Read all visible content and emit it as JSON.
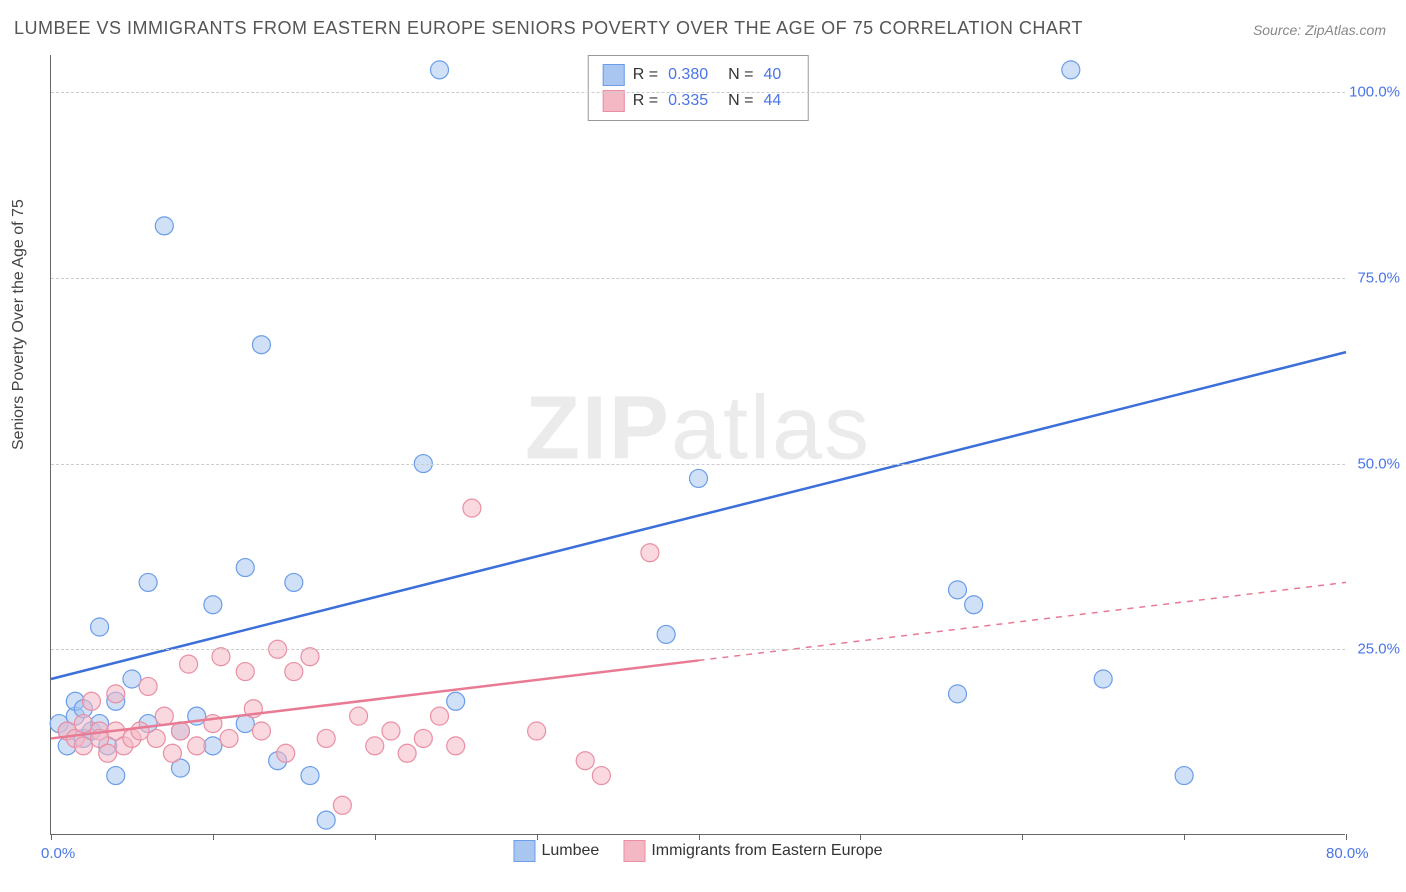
{
  "title": "LUMBEE VS IMMIGRANTS FROM EASTERN EUROPE SENIORS POVERTY OVER THE AGE OF 75 CORRELATION CHART",
  "source": "Source: ZipAtlas.com",
  "y_axis_label": "Seniors Poverty Over the Age of 75",
  "watermark_bold": "ZIP",
  "watermark_light": "atlas",
  "chart": {
    "type": "scatter",
    "plot_background": "#ffffff",
    "grid_color": "#cccccc",
    "axis_color": "#666666",
    "tick_label_color": "#4a74e8",
    "xlim": [
      0,
      80
    ],
    "ylim": [
      0,
      105
    ],
    "y_ticks": [
      25,
      50,
      75,
      100
    ],
    "y_tick_labels": [
      "25.0%",
      "50.0%",
      "75.0%",
      "100.0%"
    ],
    "x_ticks": [
      0,
      10,
      20,
      30,
      40,
      50,
      60,
      70,
      80
    ],
    "x_axis_labels": [
      {
        "value": 0,
        "text": "0.0%"
      },
      {
        "value": 80,
        "text": "80.0%"
      }
    ],
    "marker_radius": 9,
    "marker_opacity": 0.55,
    "line_width": 2.5,
    "series": [
      {
        "name": "Lumbee",
        "color_fill": "#a8c6f0",
        "color_stroke": "#6b9de8",
        "line_color": "#3c6fd9",
        "R": "0.380",
        "N": "40",
        "trend": {
          "x1": 0,
          "y1": 21,
          "x2": 80,
          "y2": 65,
          "solid_until_x": 80
        },
        "points": [
          [
            0.5,
            15
          ],
          [
            1,
            12
          ],
          [
            1,
            14
          ],
          [
            1.5,
            16
          ],
          [
            1.5,
            18
          ],
          [
            2,
            13
          ],
          [
            2,
            17
          ],
          [
            2.5,
            14
          ],
          [
            3,
            28
          ],
          [
            3,
            15
          ],
          [
            3.5,
            12
          ],
          [
            4,
            18
          ],
          [
            4,
            8
          ],
          [
            5,
            21
          ],
          [
            6,
            34
          ],
          [
            6,
            15
          ],
          [
            7,
            82
          ],
          [
            8,
            14
          ],
          [
            8,
            9
          ],
          [
            9,
            16
          ],
          [
            10,
            31
          ],
          [
            10,
            12
          ],
          [
            12,
            36
          ],
          [
            12,
            15
          ],
          [
            13,
            66
          ],
          [
            14,
            10
          ],
          [
            15,
            34
          ],
          [
            16,
            8
          ],
          [
            17,
            2
          ],
          [
            23,
            50
          ],
          [
            24,
            103
          ],
          [
            25,
            18
          ],
          [
            38,
            27
          ],
          [
            40,
            48
          ],
          [
            56,
            19
          ],
          [
            56,
            33
          ],
          [
            57,
            31
          ],
          [
            63,
            103
          ],
          [
            65,
            21
          ],
          [
            70,
            8
          ]
        ]
      },
      {
        "name": "Immigrants from Eastern Europe",
        "color_fill": "#f4b8c4",
        "color_stroke": "#ea8fa3",
        "line_color": "#e87a94",
        "R": "0.335",
        "N": "44",
        "trend": {
          "x1": 0,
          "y1": 13,
          "x2": 80,
          "y2": 34,
          "solid_until_x": 40
        },
        "points": [
          [
            1,
            14
          ],
          [
            1.5,
            13
          ],
          [
            2,
            12
          ],
          [
            2,
            15
          ],
          [
            2.5,
            18
          ],
          [
            3,
            14
          ],
          [
            3,
            13
          ],
          [
            3.5,
            11
          ],
          [
            4,
            19
          ],
          [
            4,
            14
          ],
          [
            4.5,
            12
          ],
          [
            5,
            13
          ],
          [
            5.5,
            14
          ],
          [
            6,
            20
          ],
          [
            6.5,
            13
          ],
          [
            7,
            16
          ],
          [
            7.5,
            11
          ],
          [
            8,
            14
          ],
          [
            8.5,
            23
          ],
          [
            9,
            12
          ],
          [
            10,
            15
          ],
          [
            10.5,
            24
          ],
          [
            11,
            13
          ],
          [
            12,
            22
          ],
          [
            12.5,
            17
          ],
          [
            13,
            14
          ],
          [
            14,
            25
          ],
          [
            14.5,
            11
          ],
          [
            15,
            22
          ],
          [
            16,
            24
          ],
          [
            17,
            13
          ],
          [
            18,
            4
          ],
          [
            19,
            16
          ],
          [
            20,
            12
          ],
          [
            21,
            14
          ],
          [
            22,
            11
          ],
          [
            23,
            13
          ],
          [
            24,
            16
          ],
          [
            25,
            12
          ],
          [
            26,
            44
          ],
          [
            30,
            14
          ],
          [
            33,
            10
          ],
          [
            34,
            8
          ],
          [
            37,
            38
          ]
        ]
      }
    ]
  },
  "legend_top": {
    "rows": [
      {
        "swatch_fill": "#a8c6f0",
        "swatch_stroke": "#6b9de8",
        "r_label": "R =",
        "r_val": "0.380",
        "n_label": "N =",
        "n_val": "40"
      },
      {
        "swatch_fill": "#f4b8c4",
        "swatch_stroke": "#ea8fa3",
        "r_label": "R =",
        "r_val": "0.335",
        "n_label": "N =",
        "n_val": "44"
      }
    ]
  },
  "legend_bottom": {
    "items": [
      {
        "swatch_fill": "#a8c6f0",
        "swatch_stroke": "#6b9de8",
        "label": "Lumbee"
      },
      {
        "swatch_fill": "#f4b8c4",
        "swatch_stroke": "#ea8fa3",
        "label": "Immigrants from Eastern Europe"
      }
    ]
  }
}
